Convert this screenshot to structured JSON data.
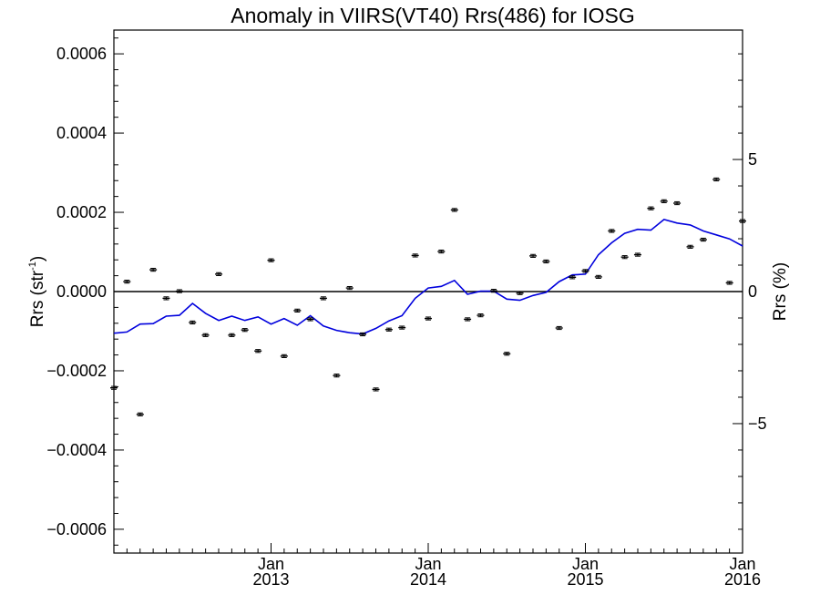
{
  "chart_data": {
    "type": "scatter",
    "title": "Anomaly in VIIRS(VT40) Rrs(486) for IOSG",
    "ylabel_left": "Rrs (str",
    "ylabel_left_sup": "-1",
    "ylabel_left_close": ")",
    "ylabel_right": "Rrs (%)",
    "xlim": [
      2012.0,
      2016.0
    ],
    "ylim_left": [
      -0.00066,
      0.00066
    ],
    "ylim_right": [
      -9.9,
      9.9
    ],
    "grid": false,
    "x_ticks": [
      {
        "value": 2013.0,
        "line1": "Jan",
        "line2": "2013"
      },
      {
        "value": 2014.0,
        "line1": "Jan",
        "line2": "2014"
      },
      {
        "value": 2015.0,
        "line1": "Jan",
        "line2": "2015"
      },
      {
        "value": 2016.0,
        "line1": "Jan",
        "line2": "2016"
      }
    ],
    "y_ticks_left": [
      {
        "value": 0.0006,
        "label": "0.0006"
      },
      {
        "value": 0.0004,
        "label": "0.0004"
      },
      {
        "value": 0.0002,
        "label": "0.0002"
      },
      {
        "value": 0.0,
        "label": "0.0000"
      },
      {
        "value": -0.0002,
        "label": "−0.0002"
      },
      {
        "value": -0.0004,
        "label": "−0.0004"
      },
      {
        "value": -0.0006,
        "label": "−0.0006"
      }
    ],
    "y_ticks_right": [
      {
        "value": 5,
        "label": "5"
      },
      {
        "value": 0,
        "label": "0"
      },
      {
        "value": -5,
        "label": "−5"
      }
    ],
    "series": [
      {
        "kind": "monthly-anomaly-points-with-error-bars",
        "color": "#000000",
        "x": [
          2012.0,
          2012.083,
          2012.167,
          2012.25,
          2012.333,
          2012.417,
          2012.5,
          2012.583,
          2012.667,
          2012.75,
          2012.833,
          2012.917,
          2013.0,
          2013.083,
          2013.167,
          2013.25,
          2013.333,
          2013.417,
          2013.5,
          2013.583,
          2013.667,
          2013.75,
          2013.833,
          2013.917,
          2014.0,
          2014.083,
          2014.167,
          2014.25,
          2014.333,
          2014.417,
          2014.5,
          2014.583,
          2014.667,
          2014.75,
          2014.833,
          2014.917,
          2015.0,
          2015.083,
          2015.167,
          2015.25,
          2015.333,
          2015.417,
          2015.5,
          2015.583,
          2015.667,
          2015.75,
          2015.833,
          2015.917,
          2016.0
        ],
        "values": [
          -0.000243,
          2.5e-05,
          -0.00031,
          5.5e-05,
          -1.7e-05,
          1e-06,
          -7.8e-05,
          -0.00011,
          4.4e-05,
          -0.00011,
          -9.7e-05,
          -0.00015,
          7.9e-05,
          -0.000163,
          -4.8e-05,
          -7e-05,
          -1.7e-05,
          -0.000212,
          9e-06,
          -0.000108,
          -0.000247,
          -9.6e-05,
          -9.1e-05,
          9.1e-05,
          -6.8e-05,
          0.000101,
          0.000206,
          -7e-05,
          -6e-05,
          2e-06,
          -0.000157,
          -4e-06,
          9e-05,
          7.6e-05,
          -9.2e-05,
          3.6e-05,
          5.2e-05,
          3.7e-05,
          0.000153,
          8.7e-05,
          9.3e-05,
          0.00021,
          0.000228,
          0.000223,
          0.000113,
          0.000131,
          0.000283,
          2.2e-05,
          0.000178
        ],
        "error": 3e-06
      },
      {
        "kind": "running-mean-line",
        "color": "#0000dd",
        "x": [
          2012.0,
          2012.083,
          2012.167,
          2012.25,
          2012.333,
          2012.417,
          2012.5,
          2012.583,
          2012.667,
          2012.75,
          2012.833,
          2012.917,
          2013.0,
          2013.083,
          2013.167,
          2013.25,
          2013.333,
          2013.417,
          2013.5,
          2013.583,
          2013.667,
          2013.75,
          2013.833,
          2013.917,
          2014.0,
          2014.083,
          2014.167,
          2014.25,
          2014.333,
          2014.417,
          2014.5,
          2014.583,
          2014.667,
          2014.75,
          2014.833,
          2014.917,
          2015.0,
          2015.083,
          2015.167,
          2015.25,
          2015.333,
          2015.417,
          2015.5,
          2015.583,
          2015.667,
          2015.75,
          2015.833,
          2015.917,
          2016.0
        ],
        "values": [
          -0.000105,
          -0.000102,
          -8.2e-05,
          -8.1e-05,
          -6.2e-05,
          -6e-05,
          -3e-05,
          -5.5e-05,
          -7.3e-05,
          -6.2e-05,
          -7.3e-05,
          -6.4e-05,
          -8.2e-05,
          -6.8e-05,
          -8.5e-05,
          -6.1e-05,
          -8.7e-05,
          -9.8e-05,
          -0.000104,
          -0.000107,
          -9.3e-05,
          -7.4e-05,
          -6.1e-05,
          -1.7e-05,
          9e-06,
          1.3e-05,
          2.8e-05,
          -7e-06,
          1e-06,
          1e-06,
          -1.9e-05,
          -2.2e-05,
          -1e-05,
          -2e-06,
          2.5e-05,
          4.2e-05,
          4.4e-05,
          9.3e-05,
          0.000123,
          0.000147,
          0.000157,
          0.000155,
          0.000182,
          0.000173,
          0.000168,
          0.000153,
          0.000143,
          0.000133,
          0.000115
        ]
      }
    ]
  }
}
